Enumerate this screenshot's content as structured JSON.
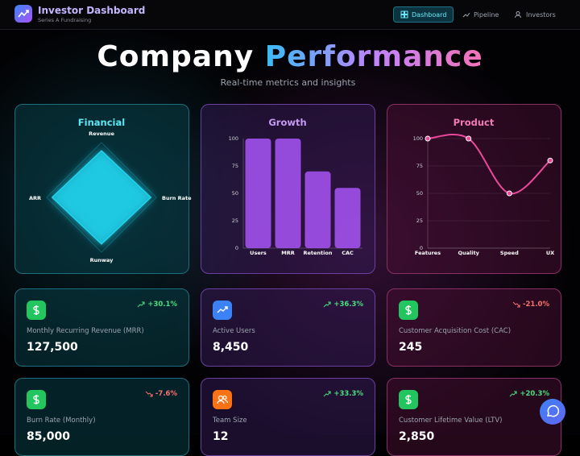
{
  "nav": {
    "title": "Investor Dashboard",
    "subtitle": "Series A Fundraising",
    "items": [
      "Dashboard",
      "Pipeline",
      "Investors"
    ]
  },
  "hero": {
    "title_start": "Company",
    "title_highlight": "Performance",
    "subtitle": "Real-time metrics and insights"
  },
  "chart_data": [
    {
      "type": "radar",
      "title": "Financial",
      "categories": [
        "Revenue",
        "Burn Rate",
        "Runway",
        "ARR"
      ],
      "values": [
        85,
        90,
        85,
        90
      ],
      "rlim": [
        0,
        100
      ],
      "color": "#22d3ee"
    },
    {
      "type": "bar",
      "title": "Growth",
      "categories": [
        "Users",
        "MRR",
        "Retention",
        "CAC"
      ],
      "values": [
        100,
        100,
        70,
        55
      ],
      "ylim": [
        0,
        100
      ],
      "yticks": [
        0,
        25,
        50,
        75,
        100
      ],
      "color": "#a855f7"
    },
    {
      "type": "line",
      "title": "Product",
      "categories": [
        "Features",
        "Quality",
        "Speed",
        "UX"
      ],
      "values": [
        100,
        100,
        50,
        80
      ],
      "ylim": [
        0,
        100
      ],
      "yticks": [
        0,
        25,
        50,
        75,
        100
      ],
      "color": "#ec4899",
      "grid": true
    }
  ],
  "cards": [
    {
      "change": "+30.1%",
      "label": "Monthly Recurring Revenue (MRR)",
      "value": "127,500",
      "icon_color": "#22c55e"
    },
    {
      "change": "+36.3%",
      "label": "Active Users",
      "value": "8,450",
      "icon_color": "#3b82f6"
    },
    {
      "change": "-21.0%",
      "label": "Customer Acquisition Cost (CAC)",
      "value": "245",
      "icon_color": "#22c55e"
    },
    {
      "change": "-7.6%",
      "label": "Burn Rate (Monthly)",
      "value": "85,000",
      "icon_color": "#22c55e"
    },
    {
      "change": "+33.3%",
      "label": "Team Size",
      "value": "12",
      "icon_color": "#f97316"
    },
    {
      "change": "+20.3%",
      "label": "Customer Lifetime Value (LTV)",
      "value": "2,850",
      "icon_color": "#22c55e"
    }
  ]
}
